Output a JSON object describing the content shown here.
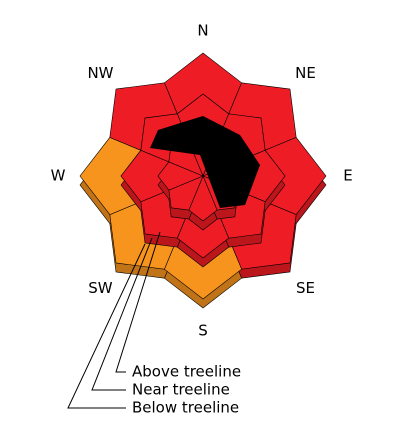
{
  "rose": {
    "directions": [
      "N",
      "NE",
      "E",
      "SE",
      "S",
      "SW",
      "W",
      "NW"
    ],
    "levels": [
      {
        "name": "Below treeline",
        "colors": [
          "#ee1c24",
          "#ee1c24",
          "#ee1c24",
          "#ee1c24",
          "#f7941d",
          "#f7941d",
          "#f7941d",
          "#ee1c24"
        ]
      },
      {
        "name": "Near treeline",
        "colors": [
          "#ee1c24",
          "#ee1c24",
          "#ee1c24",
          "#ee1c24",
          "#ee1c24",
          "#ee1c24",
          "#ee1c24",
          "#ee1c24"
        ]
      },
      {
        "name": "Above treeline",
        "colors": [
          "#ee1c24",
          "#ee1c24",
          "#ee1c24",
          "#ee1c24",
          "#ee1c24",
          "#ee1c24",
          "#ee1c24",
          "#ee1c24"
        ]
      }
    ]
  }
}
